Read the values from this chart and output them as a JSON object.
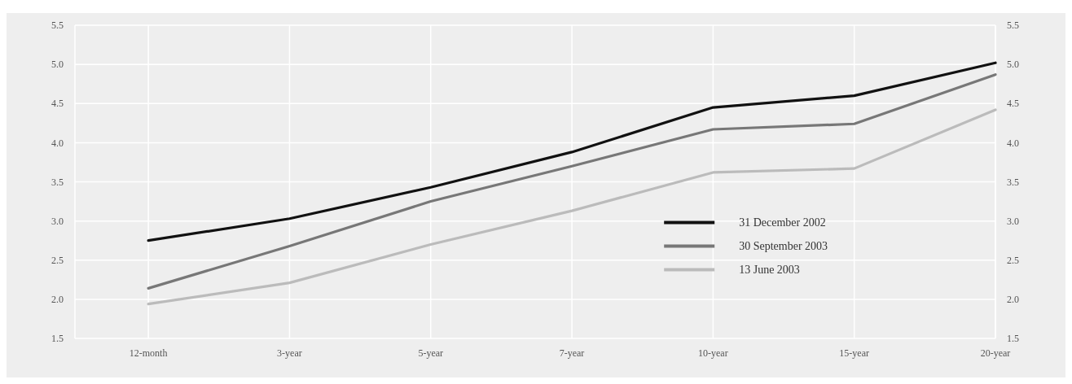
{
  "chart_data": {
    "type": "line",
    "categories": [
      "12-month",
      "3-year",
      "5-year",
      "7-year",
      "10-year",
      "15-year",
      "20-year"
    ],
    "series": [
      {
        "name": "31 December 2002",
        "color": "#111111",
        "values": [
          2.75,
          3.03,
          3.43,
          3.88,
          4.45,
          4.6,
          5.02
        ]
      },
      {
        "name": "30 September 2003",
        "color": "#777777",
        "values": [
          2.14,
          2.68,
          3.25,
          3.7,
          4.17,
          4.24,
          4.87
        ]
      },
      {
        "name": "13 June 2003",
        "color": "#bbbbbb",
        "values": [
          1.94,
          2.21,
          2.7,
          3.13,
          3.62,
          3.67,
          4.42
        ]
      }
    ],
    "ylim": [
      1.5,
      5.5
    ],
    "yticks": [
      1.5,
      {
        "value": 2,
        "label": "2.0"
      },
      2.5,
      {
        "value": 3,
        "label": "3.0"
      },
      3.5,
      {
        "value": 4,
        "label": "4.0"
      },
      4.5,
      {
        "value": 5,
        "label": "5.0"
      },
      5.5
    ],
    "y2lim": [
      1.5,
      5.5
    ],
    "y2ticks": [
      1.5,
      {
        "value": 2,
        "label": "2.0"
      },
      2.5,
      {
        "value": 3,
        "label": "3.0"
      },
      3.5,
      {
        "value": 4,
        "label": "4.0"
      },
      4.5,
      {
        "value": 5,
        "label": "5.0"
      },
      5.5
    ],
    "grid": true,
    "legend": "bottom right",
    "marker": "none",
    "line_style": "solid"
  }
}
